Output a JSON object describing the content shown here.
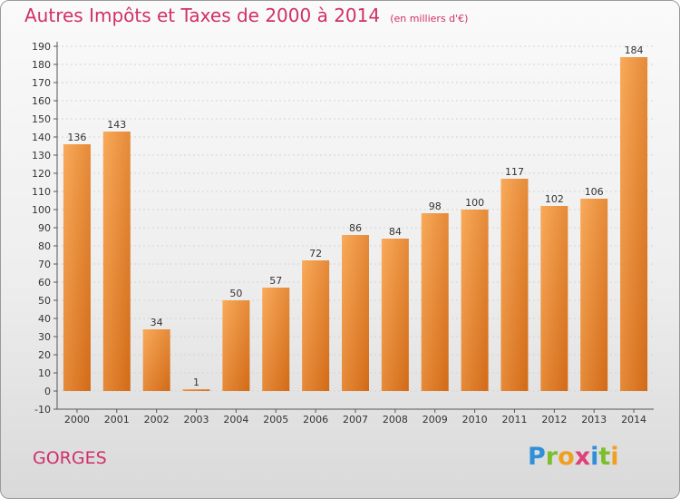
{
  "colors": {
    "title": "#d0306a",
    "bar_light": "#f7a555",
    "bar_dark": "#d26a17",
    "grid": "#d4d4d4",
    "axis": "#555555"
  },
  "chart_data": {
    "type": "bar",
    "title": "Autres Impôts et Taxes de 2000 à 2014",
    "subtitle": "(en milliers d'€)",
    "categories": [
      "2000",
      "2001",
      "2002",
      "2003",
      "2004",
      "2005",
      "2006",
      "2007",
      "2008",
      "2009",
      "2010",
      "2011",
      "2012",
      "2013",
      "2014"
    ],
    "values": [
      136,
      143,
      34,
      1,
      50,
      57,
      72,
      86,
      84,
      98,
      100,
      117,
      102,
      106,
      184
    ],
    "ylim": [
      -10,
      190
    ],
    "yticks": [
      -10,
      0,
      10,
      20,
      30,
      40,
      50,
      60,
      70,
      80,
      90,
      100,
      110,
      120,
      130,
      140,
      150,
      160,
      170,
      180,
      190
    ],
    "grid": true,
    "xlabel": "",
    "ylabel": ""
  },
  "footer": {
    "city": "GORGES",
    "logo": {
      "letters": [
        "P",
        "r",
        "o",
        "x",
        "i",
        "t",
        "i"
      ],
      "colors": [
        "#2f8fd8",
        "#7bbf2a",
        "#f0a020",
        "#e0407a",
        "#2f8fd8",
        "#7bbf2a",
        "#f0a020"
      ]
    }
  }
}
